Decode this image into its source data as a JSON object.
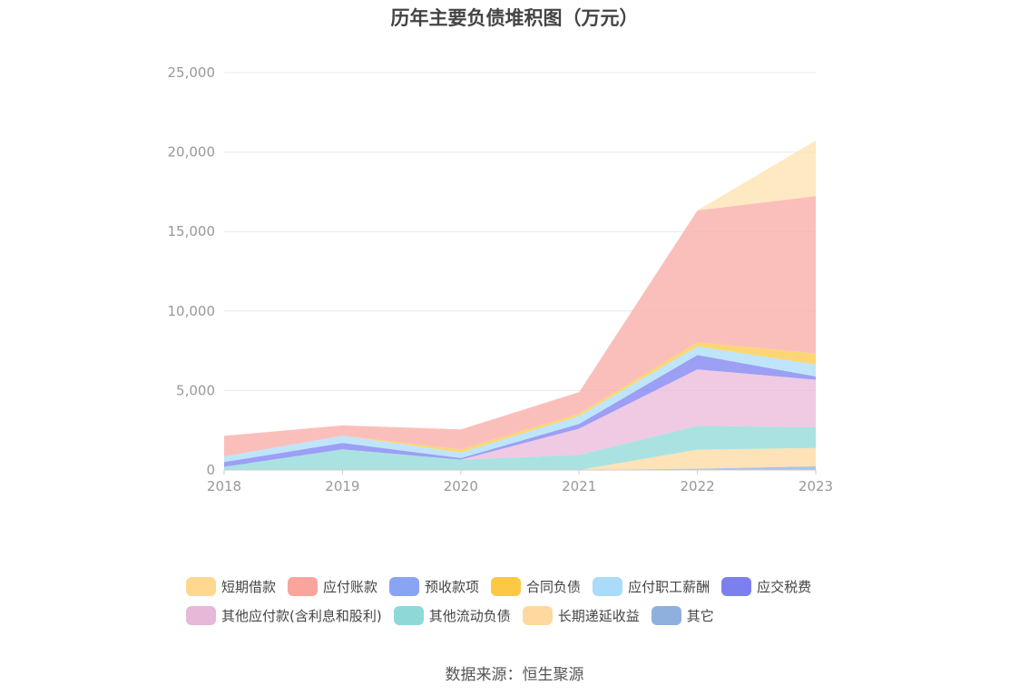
{
  "chart_data": {
    "type": "area",
    "stacked": true,
    "title": "历年主要负债堆积图（万元）",
    "source": "数据来源：恒生聚源",
    "categories": [
      "2018",
      "2019",
      "2020",
      "2021",
      "2022",
      "2023"
    ],
    "ylim": [
      0,
      25000
    ],
    "yticks": [
      0,
      5000,
      10000,
      15000,
      20000,
      25000
    ],
    "ytick_labels": [
      "0",
      "5,000",
      "10,000",
      "15,000",
      "20,000",
      "25,000"
    ],
    "grid": true,
    "legend_position": "bottom",
    "series": [
      {
        "name": "其它",
        "color": "#8fb0dc",
        "values": [
          0,
          0,
          0,
          0,
          80,
          230
        ]
      },
      {
        "name": "长期递延收益",
        "color": "#fdd9a0",
        "values": [
          0,
          0,
          0,
          0,
          1200,
          1150
        ]
      },
      {
        "name": "其他流动负债",
        "color": "#8ed8d8",
        "values": [
          200,
          1300,
          650,
          950,
          1500,
          1300
        ]
      },
      {
        "name": "其他应付款(含利息和股利)",
        "color": "#eab8d8",
        "values": [
          0,
          0,
          0,
          1650,
          3550,
          3000
        ]
      },
      {
        "name": "应交税费",
        "color": "#7b7ff0",
        "values": [
          300,
          400,
          100,
          300,
          900,
          200
        ]
      },
      {
        "name": "应付职工薪酬",
        "color": "#a8dcf8",
        "values": [
          350,
          450,
          350,
          500,
          550,
          750
        ]
      },
      {
        "name": "合同负债",
        "color": "#fcc845",
        "values": [
          0,
          0,
          200,
          150,
          250,
          700
        ]
      },
      {
        "name": "预收款项",
        "color": "#8aa4f5",
        "values": [
          0,
          0,
          0,
          0,
          0,
          0
        ]
      },
      {
        "name": "应付账款",
        "color": "#f9a9a4",
        "values": [
          1300,
          650,
          1250,
          1350,
          8300,
          9900
        ]
      },
      {
        "name": "短期借款",
        "color": "#fde2ae",
        "values": [
          0,
          0,
          0,
          0,
          0,
          3500
        ]
      }
    ],
    "legend_rows": [
      [
        {
          "name": "短期借款",
          "color": "#fed88f"
        },
        {
          "name": "应付账款",
          "color": "#f9a59c"
        },
        {
          "name": "预收款项",
          "color": "#8aa4f5"
        },
        {
          "name": "合同负债",
          "color": "#fcc845"
        },
        {
          "name": "应付职工薪酬",
          "color": "#a8dcf8"
        },
        {
          "name": "应交税费",
          "color": "#7b7ff0"
        }
      ],
      [
        {
          "name": "其他应付款(含利息和股利)",
          "color": "#e8b8d8"
        },
        {
          "name": "其他流动负债",
          "color": "#8ed8d8"
        },
        {
          "name": "长期递延收益",
          "color": "#fdd9a0"
        },
        {
          "name": "其它",
          "color": "#8fb0dc"
        }
      ]
    ]
  }
}
